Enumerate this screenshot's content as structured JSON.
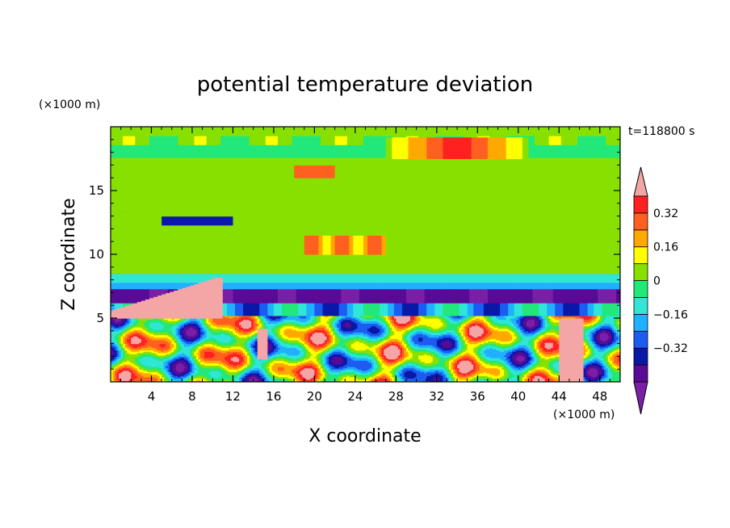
{
  "chart_data": {
    "type": "heatmap",
    "title": "potential temperature deviation",
    "xlabel": "X coordinate",
    "ylabel": "Z coordinate",
    "x_unit": "(×1000 m)",
    "y_unit": "(×1000 m)",
    "time_label": "t=118800 s",
    "xlim": [
      0,
      50
    ],
    "ylim": [
      0,
      20
    ],
    "x_ticks": [
      4,
      8,
      12,
      16,
      20,
      24,
      28,
      32,
      36,
      40,
      44,
      48
    ],
    "y_ticks": [
      5,
      10,
      15
    ],
    "colorbar": {
      "levels": [
        -0.48,
        -0.4,
        -0.32,
        -0.24,
        -0.16,
        -0.08,
        0,
        0.08,
        0.16,
        0.24,
        0.32,
        0.4
      ],
      "labeled_levels": [
        -0.32,
        -0.16,
        0,
        0.16,
        0.32
      ],
      "labels": [
        "−0.32",
        "−0.16",
        "0",
        "0.16",
        "0.32"
      ],
      "colors": [
        "#7a1fa6",
        "#5a0a96",
        "#0a18a8",
        "#1c5cf0",
        "#20b0ff",
        "#30e6d6",
        "#22e87a",
        "#88e000",
        "#ffff00",
        "#ffa800",
        "#ff6020",
        "#ff2020",
        "#f4a6a6"
      ],
      "extend": "both"
    },
    "regions": [
      {
        "band": "upper stratosphere (z 18–20)",
        "value": 0.0
      },
      {
        "band": "mid level (z 8–17)",
        "value": 0.05
      },
      {
        "band": "warm patch near top centre (x 28–40, z 18–19)",
        "value": 0.3
      },
      {
        "band": "pink warm anomaly (x 0–11, z 5–8)",
        "value": 0.48
      },
      {
        "band": "cold purple layer (z 6–7)",
        "value": -0.45
      },
      {
        "band": "convective cells (z 0–5)",
        "value": 0.0
      }
    ]
  }
}
